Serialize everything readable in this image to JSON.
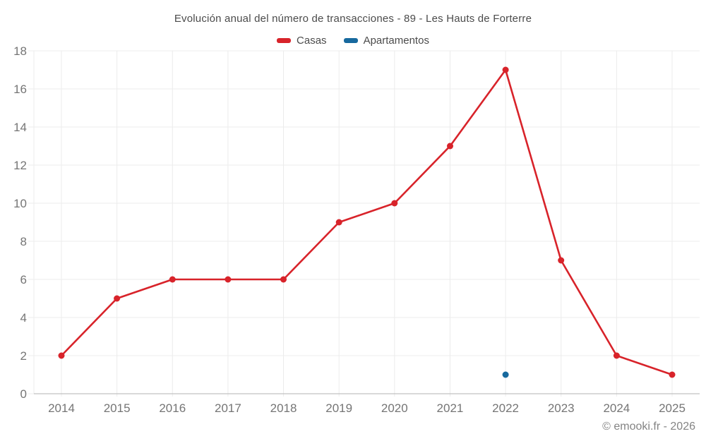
{
  "header": {
    "title": "Evolución anual del número de transacciones - 89 - Les Hauts de Forterre"
  },
  "legend": {
    "items": [
      {
        "id": "casas",
        "label": "Casas",
        "color": "#d8232a"
      },
      {
        "id": "apartamentos",
        "label": "Apartamentos",
        "color": "#17699e"
      }
    ]
  },
  "footer": {
    "credit": "© emooki.fr - 2026"
  },
  "chart_data": {
    "type": "line",
    "title": "Evolución anual del número de transacciones - 89 - Les Hauts de Forterre",
    "categories": [
      "2014",
      "2015",
      "2016",
      "2017",
      "2018",
      "2019",
      "2020",
      "2021",
      "2022",
      "2023",
      "2024",
      "2025"
    ],
    "series": [
      {
        "name": "Casas",
        "color": "#d8232a",
        "values": [
          2,
          5,
          6,
          6,
          6,
          9,
          10,
          13,
          17,
          7,
          2,
          1
        ]
      },
      {
        "name": "Apartamentos",
        "color": "#17699e",
        "values": [
          null,
          null,
          null,
          null,
          null,
          null,
          null,
          null,
          1,
          null,
          null,
          null
        ]
      }
    ],
    "xlabel": "",
    "ylabel": "",
    "ylim": [
      0,
      18
    ],
    "yticks": [
      0,
      2,
      4,
      6,
      8,
      10,
      12,
      14,
      16,
      18
    ],
    "grid": true,
    "legend_position": "top",
    "grid_color": "#ececec",
    "axis_color": "#b3b3b3",
    "tick_label_color": "#757575"
  }
}
